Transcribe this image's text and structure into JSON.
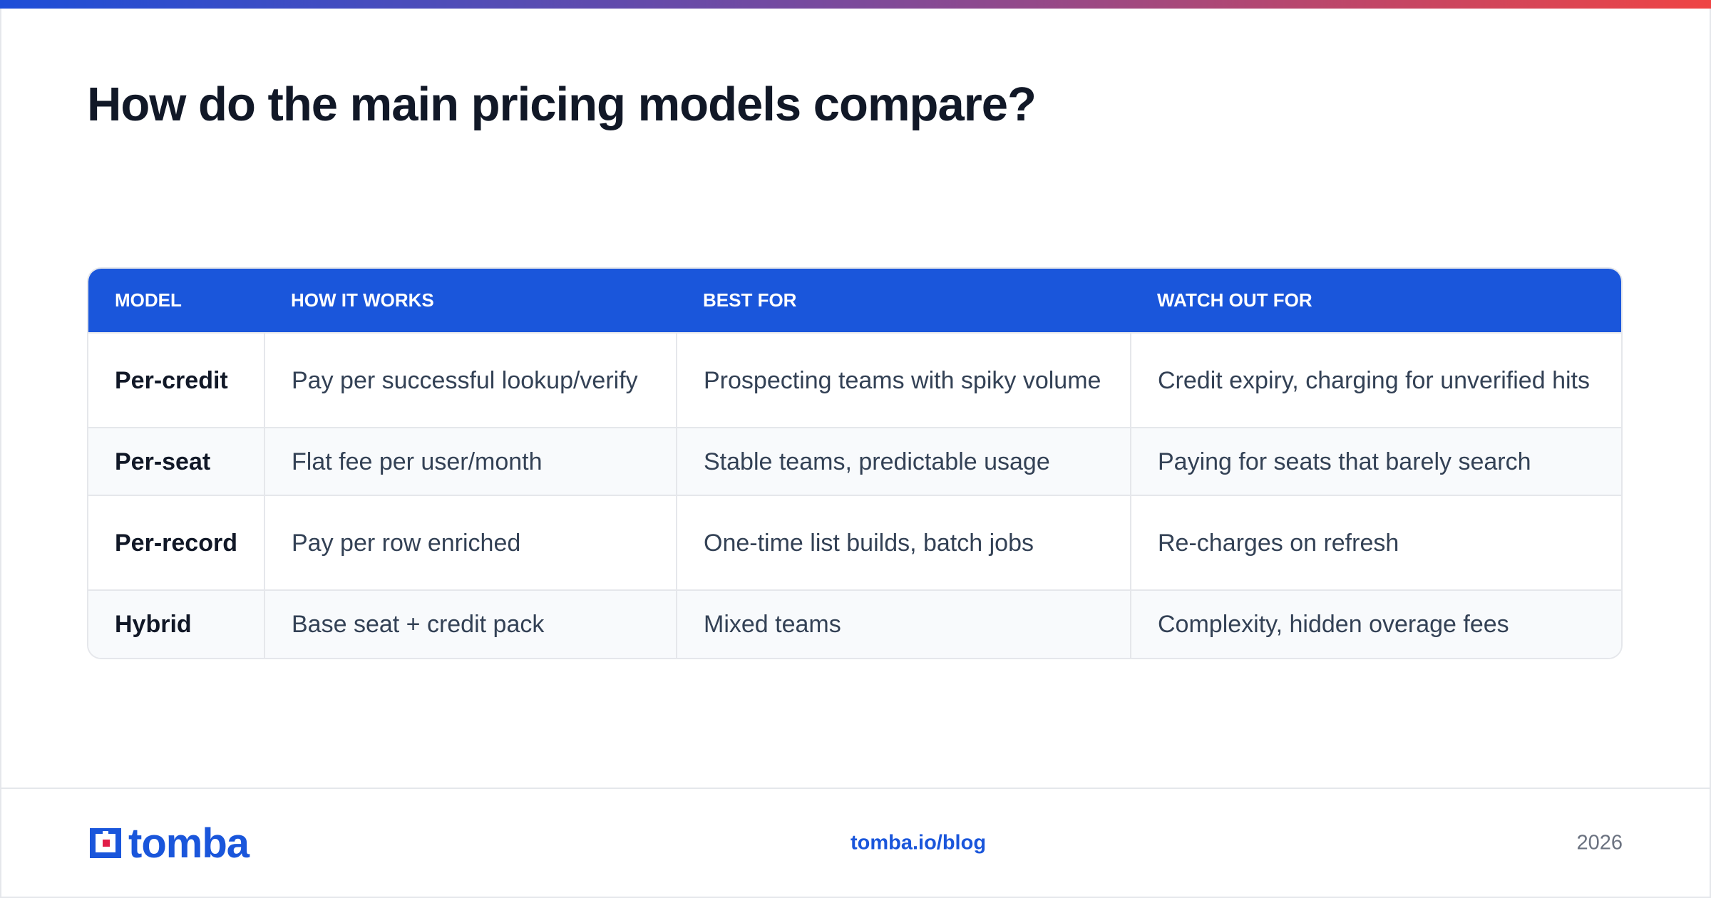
{
  "header": {
    "title": "How do the main pricing models compare?"
  },
  "table": {
    "columns": [
      "MODEL",
      "HOW IT WORKS",
      "BEST FOR",
      "WATCH OUT FOR"
    ],
    "rows": [
      [
        "Per-credit",
        "Pay per successful lookup/verify",
        "Prospecting teams with spiky volume",
        "Credit expiry, charging for unverified hits"
      ],
      [
        "Per-seat",
        "Flat fee per user/month",
        "Stable teams, predictable usage",
        "Paying for seats that barely search"
      ],
      [
        "Per-record",
        "Pay per row enriched",
        "One-time list builds, batch jobs",
        "Re-charges on refresh"
      ],
      [
        "Hybrid",
        "Base seat + credit pack",
        "Mixed teams",
        "Complexity, hidden overage fees"
      ]
    ]
  },
  "footer": {
    "logo": "tomba",
    "url": "tomba.io/blog",
    "year": "2026"
  }
}
